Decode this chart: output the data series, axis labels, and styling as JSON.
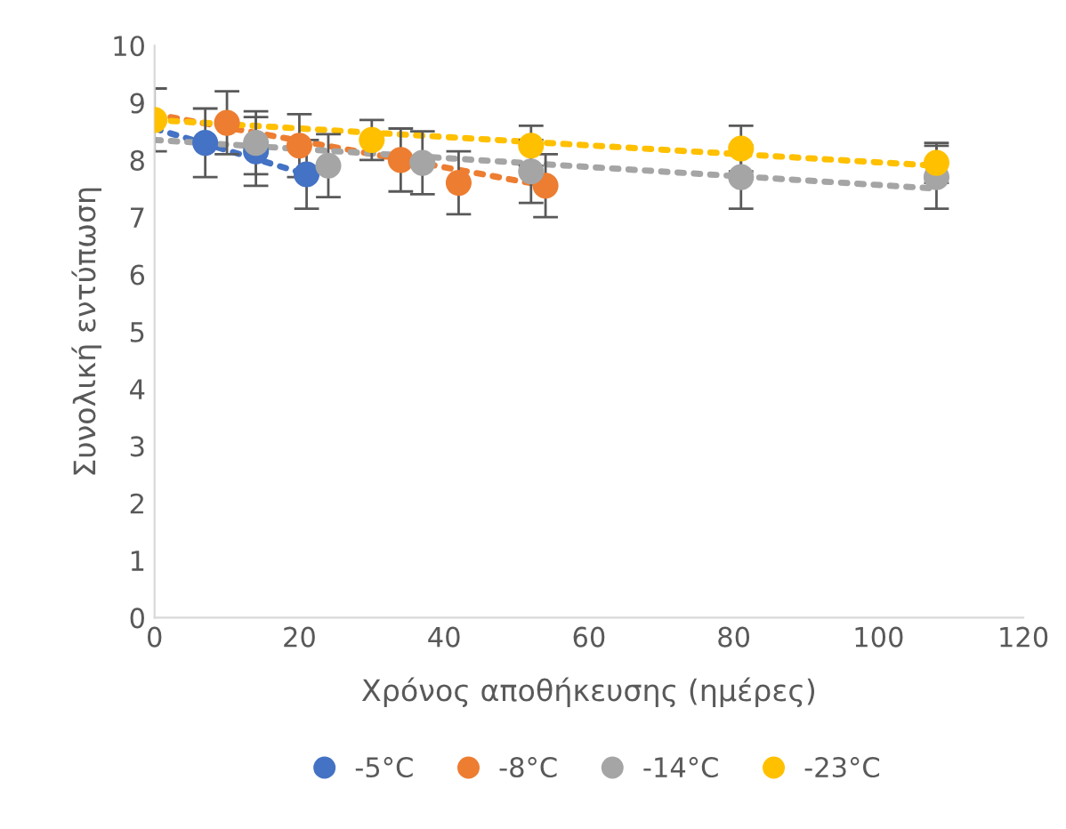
{
  "chart_data": {
    "type": "scatter",
    "xlabel": "Χρόνος αποθήκευσης (ημέρες)",
    "ylabel": "Συνολική εντύπωση",
    "xlim": [
      0,
      120
    ],
    "xticks": [
      0,
      20,
      40,
      60,
      80,
      100,
      120
    ],
    "ylim": [
      0,
      10
    ],
    "yticks": [
      0,
      1,
      2,
      3,
      4,
      5,
      6,
      7,
      8,
      9,
      10
    ],
    "grid": false,
    "legend": "bottom",
    "marker": "circle",
    "series": [
      {
        "name": "-5°C",
        "color": "#4472c4",
        "x": [
          7,
          14,
          21
        ],
        "values": [
          8.3,
          8.15,
          7.75
        ],
        "errors": [
          0.6,
          0.6,
          0.6
        ]
      },
      {
        "name": "-8°C",
        "color": "#ed7d31",
        "x": [
          10,
          20,
          34,
          42,
          54
        ],
        "values": [
          8.65,
          8.25,
          8.0,
          7.6,
          7.55
        ],
        "errors": [
          0.55,
          0.55,
          0.55,
          0.55,
          0.55
        ]
      },
      {
        "name": "-14°C",
        "color": "#a5a5a5",
        "x": [
          14,
          24,
          37,
          52,
          81,
          108
        ],
        "values": [
          8.3,
          7.9,
          7.95,
          7.8,
          7.7,
          7.7
        ],
        "errors": [
          0.55,
          0.55,
          0.55,
          0.55,
          0.55,
          0.55
        ]
      },
      {
        "name": "-23°C",
        "color": "#ffc000",
        "x": [
          0,
          30,
          52,
          81,
          108
        ],
        "values": [
          8.7,
          8.35,
          8.25,
          8.2,
          7.95
        ],
        "errors": [
          0.55,
          0.35,
          0.35,
          0.4,
          0.35
        ]
      },
      {
        "type": "line",
        "marker": "none",
        "line_style": "dotted",
        "color": "#4472c4",
        "x": [
          0,
          21
        ],
        "values": [
          8.55,
          7.75
        ]
      },
      {
        "type": "line",
        "marker": "none",
        "line_style": "dotted",
        "color": "#ed7d31",
        "x": [
          0,
          54
        ],
        "values": [
          8.8,
          7.55
        ]
      },
      {
        "type": "line",
        "marker": "none",
        "line_style": "dotted",
        "color": "#a5a5a5",
        "x": [
          0,
          108
        ],
        "values": [
          8.35,
          7.5
        ]
      },
      {
        "type": "line",
        "marker": "none",
        "line_style": "dotted",
        "color": "#ffc000",
        "x": [
          0,
          108
        ],
        "values": [
          8.7,
          7.9
        ]
      }
    ]
  }
}
